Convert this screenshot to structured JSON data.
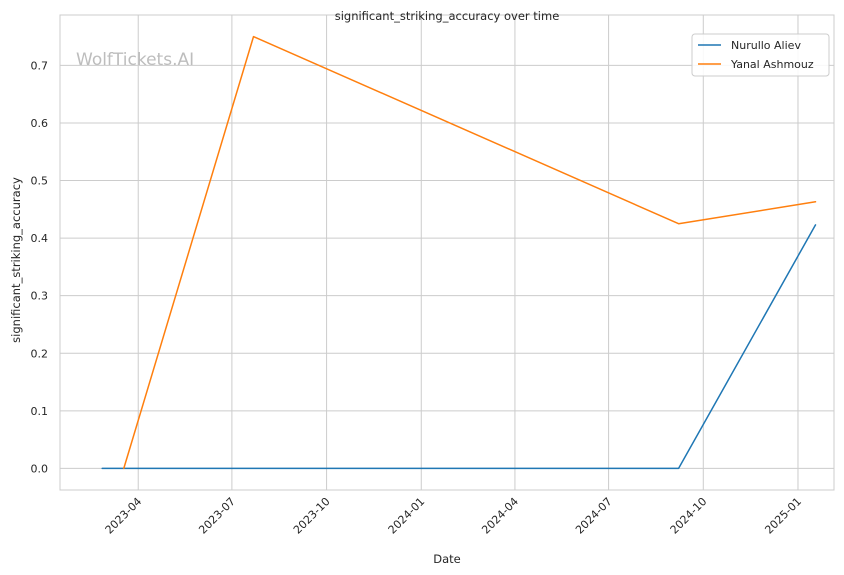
{
  "chart_data": {
    "type": "line",
    "title": "significant_striking_accuracy over time",
    "xlabel": "Date",
    "ylabel": "significant_striking_accuracy",
    "watermark": "WolfTickets.AI",
    "x_axis_type": "date",
    "xlim": [
      "2023-01-15",
      "2025-02-05"
    ],
    "ylim": [
      -0.0375,
      0.7875
    ],
    "x_ticks": [
      "2023-04-01",
      "2023-07-01",
      "2023-10-01",
      "2024-01-01",
      "2024-04-01",
      "2024-07-01",
      "2024-10-01",
      "2025-01-01"
    ],
    "x_tick_labels": [
      "2023-04",
      "2023-07",
      "2023-10",
      "2024-01",
      "2024-04",
      "2024-07",
      "2024-10",
      "2025-01"
    ],
    "y_ticks": [
      0.0,
      0.1,
      0.2,
      0.3,
      0.4,
      0.5,
      0.6,
      0.7
    ],
    "y_tick_labels": [
      "0.0",
      "0.1",
      "0.2",
      "0.3",
      "0.4",
      "0.5",
      "0.6",
      "0.7"
    ],
    "grid": true,
    "legend_position": "top-right",
    "series": [
      {
        "name": "Nurullo Aliev",
        "color": "#1f77b4",
        "points": [
          {
            "x": "2023-02-25",
            "y": 0.0
          },
          {
            "x": "2024-09-07",
            "y": 0.0
          },
          {
            "x": "2025-01-18",
            "y": 0.423
          }
        ]
      },
      {
        "name": "Yanal Ashmouz",
        "color": "#ff7f0e",
        "points": [
          {
            "x": "2023-03-18",
            "y": 0.0
          },
          {
            "x": "2023-07-22",
            "y": 0.75
          },
          {
            "x": "2024-09-07",
            "y": 0.425
          },
          {
            "x": "2025-01-18",
            "y": 0.463
          }
        ]
      }
    ]
  }
}
